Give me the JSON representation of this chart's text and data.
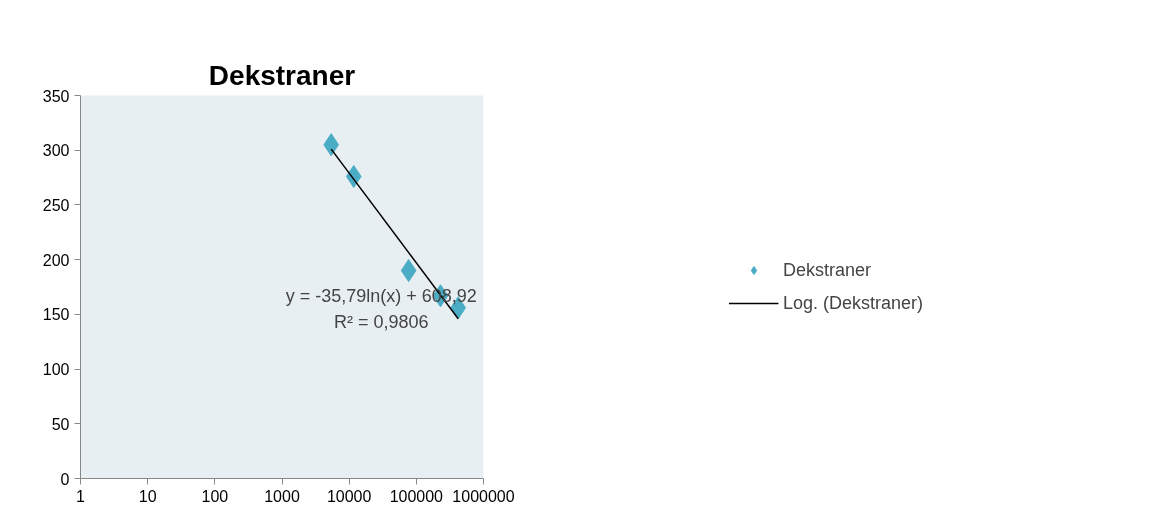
{
  "chart_data": {
    "type": "scatter",
    "title": "Dekstraner",
    "series": [
      {
        "name": "Dekstraner",
        "color": "#4bacc6",
        "marker": "diamond",
        "x": [
          5400,
          11700,
          76800,
          229000,
          420000
        ],
        "values": [
          305,
          276,
          190,
          167,
          156
        ]
      },
      {
        "name": "Log. (Dekstraner)",
        "type": "line",
        "color": "#000000",
        "line_style": "solid",
        "x": [
          5400,
          420000
        ],
        "values": [
          301,
          146
        ]
      }
    ],
    "annotations": [
      "y = -35,79ln(x) + 608,92",
      "R² = 0,9806"
    ],
    "log": "x",
    "xlim": [
      1,
      1000000
    ],
    "xticks": [
      1,
      10,
      100,
      1000,
      10000,
      100000,
      1000000
    ],
    "ylim": [
      0,
      350
    ],
    "yticks": [
      0,
      50,
      100,
      150,
      200,
      250,
      300,
      350
    ],
    "grid": false,
    "legend": "right"
  }
}
